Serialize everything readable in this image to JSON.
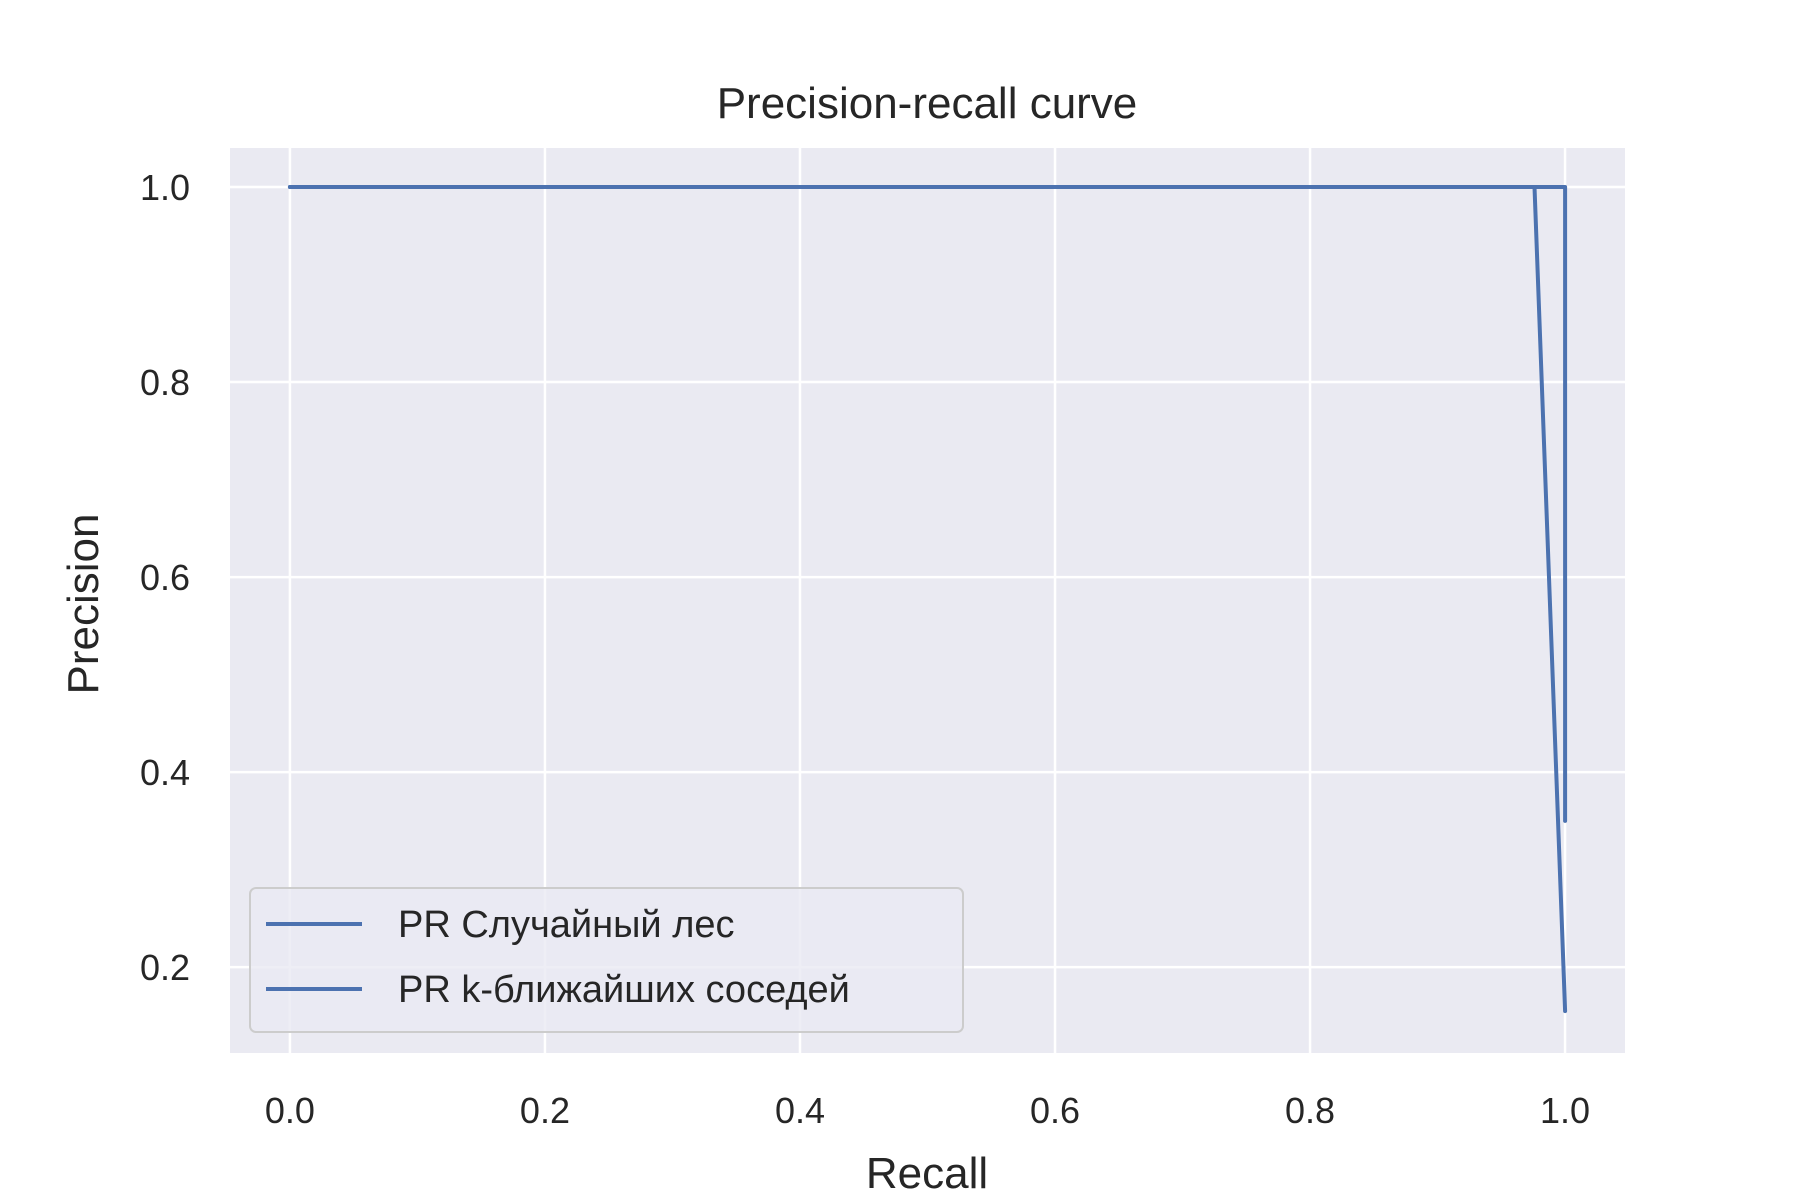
{
  "chart_data": {
    "type": "line",
    "title": "Precision-recall curve",
    "xlabel": "Recall",
    "ylabel": "Precision",
    "xlim": [
      -0.047,
      1.047
    ],
    "ylim": [
      0.112,
      1.04
    ],
    "xticks": [
      0.0,
      0.2,
      0.4,
      0.6,
      0.8,
      1.0
    ],
    "xtick_labels": [
      "0.0",
      "0.2",
      "0.4",
      "0.6",
      "0.8",
      "1.0"
    ],
    "yticks": [
      0.2,
      0.4,
      0.6,
      0.8,
      1.0
    ],
    "ytick_labels": [
      "0.2",
      "0.4",
      "0.6",
      "0.8",
      "1.0"
    ],
    "grid": true,
    "legend_position": "lower-left",
    "series": [
      {
        "name": "PR Случайный лес",
        "color": "#4c72b0",
        "x": [
          0.0,
          1.0,
          1.0
        ],
        "y": [
          1.0,
          1.0,
          0.35
        ]
      },
      {
        "name": "PR k-ближайших соседей",
        "color": "#4c72b0",
        "x": [
          0.0,
          0.976,
          1.0
        ],
        "y": [
          1.0,
          1.0,
          0.155
        ]
      }
    ]
  }
}
